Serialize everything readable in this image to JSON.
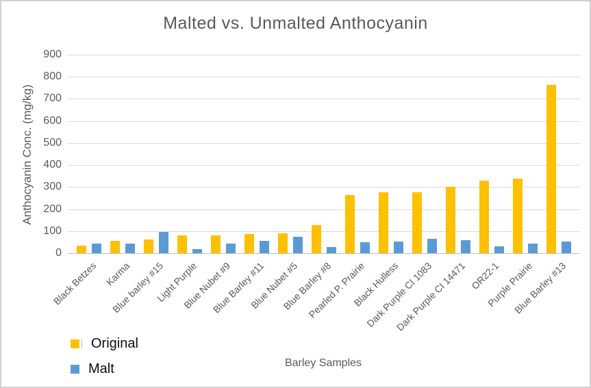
{
  "window": {
    "background": "#ffffff",
    "border_color": "#d1d1d1"
  },
  "chart_data": {
    "type": "bar",
    "title": "Malted vs. Unmalted Anthocyanin",
    "xlabel": "Barley Samples",
    "ylabel": "Anthocyanin Conc. (mg/kg)",
    "ylim": [
      0,
      900
    ],
    "ytick_step": 100,
    "yticks": [
      0,
      100,
      200,
      300,
      400,
      500,
      600,
      700,
      800,
      900
    ],
    "grid": true,
    "legend_position": "bottom-left",
    "categories": [
      "Black Betzes",
      "Karma",
      "Blue barley #15",
      "Light Purple",
      "Blue Nubet #9",
      "Blue Barley #11",
      "Blue Nubet #5",
      "Blue Barley #8",
      "Pearled P. Prairie",
      "Black Hulless",
      "Dark Purple CI 1083",
      "Dark Purple CI 14471",
      "OR22-1",
      "Purple Prairie",
      "Blue Barley #13"
    ],
    "series": [
      {
        "name": "Original",
        "color": "#FFC000",
        "values": [
          35,
          55,
          62,
          80,
          82,
          87,
          90,
          127,
          265,
          275,
          275,
          300,
          328,
          337,
          765
        ]
      },
      {
        "name": "Malt",
        "color": "#5B9BD5",
        "values": [
          42,
          45,
          95,
          19,
          43,
          55,
          73,
          28,
          50,
          53,
          65,
          58,
          30,
          44,
          54
        ]
      }
    ]
  },
  "colors": {
    "title_text": "#595959",
    "axis_text": "#595959",
    "gridline": "#d9d9d9",
    "axis_line": "#bfbfbf",
    "legend_text": "#0d0d0d"
  }
}
